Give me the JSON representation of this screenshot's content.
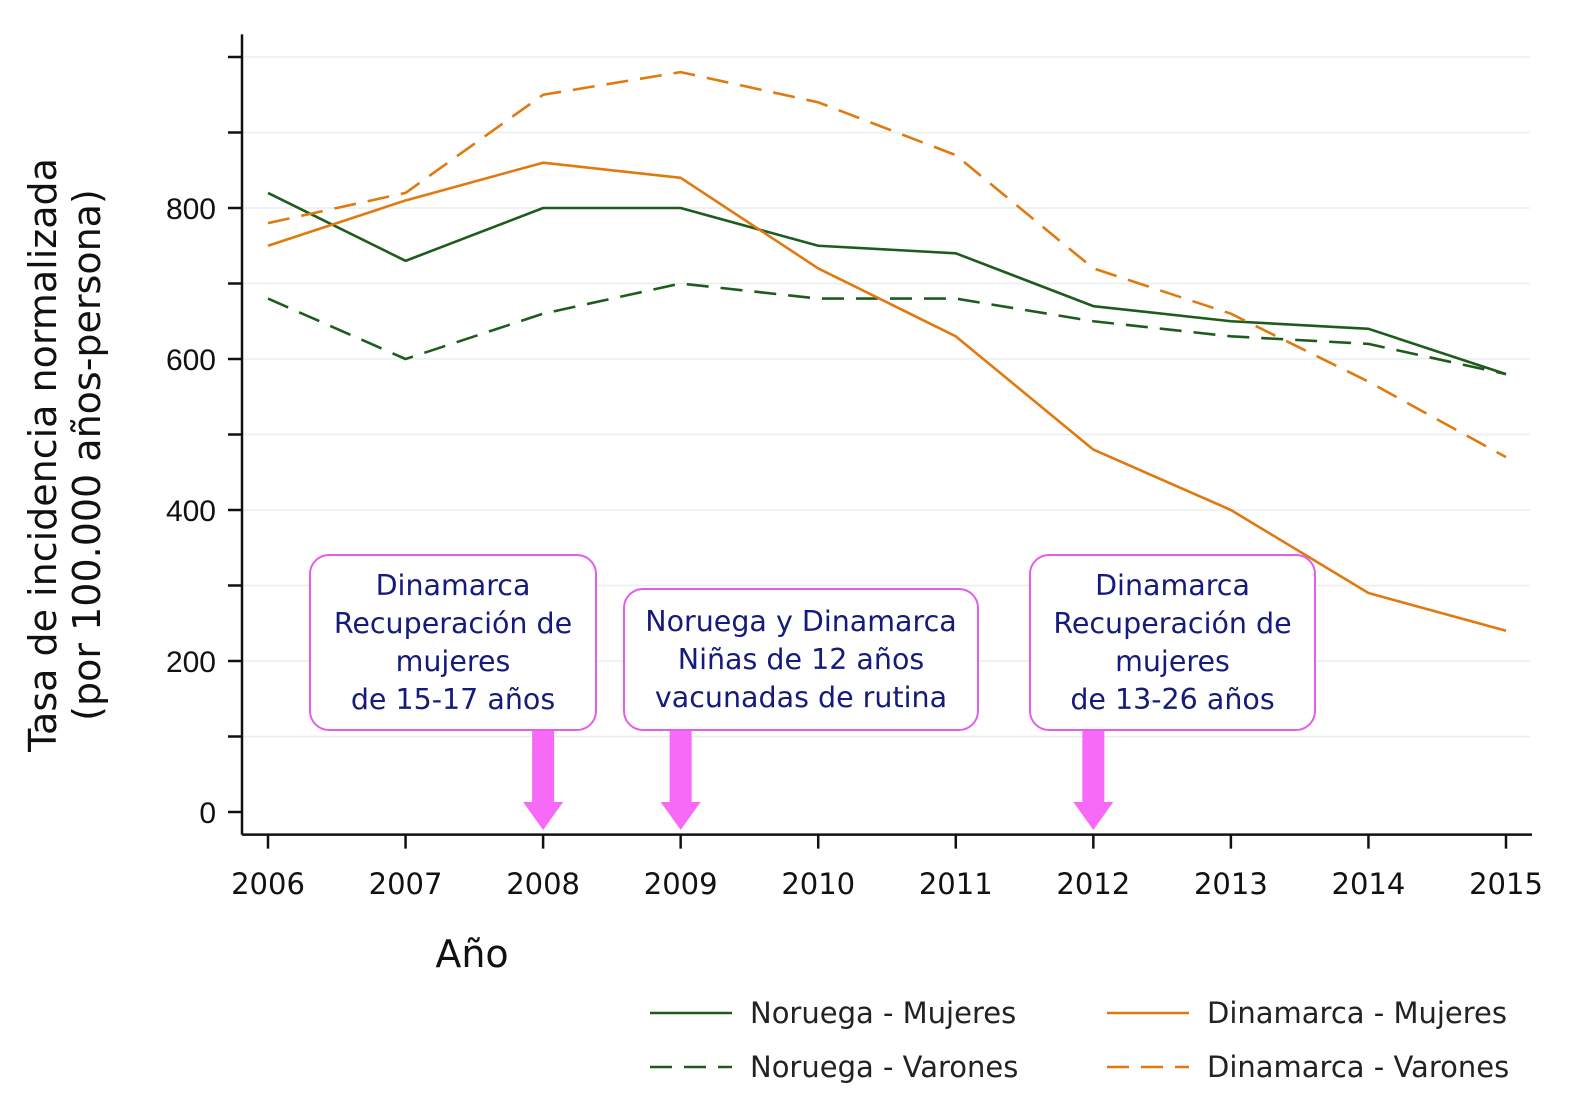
{
  "chart_data": {
    "type": "line",
    "xlabel": "Año",
    "ylabel_lines": [
      "Tasa de incidencia normalizada",
      "(por 100.000 años-persona)"
    ],
    "x": [
      2006,
      2007,
      2008,
      2009,
      2010,
      2011,
      2012,
      2013,
      2014,
      2015
    ],
    "x_tick_labels": [
      "2006",
      "2007",
      "2008",
      "2009",
      "2010",
      "2011",
      "2012",
      "2013",
      "2014",
      "2015"
    ],
    "y_tick_values": [
      0,
      200,
      400,
      600,
      800
    ],
    "y_tick_labels": [
      "0",
      "200",
      "400",
      "600",
      "800"
    ],
    "y_minor_ticks": [
      100,
      300,
      500,
      700,
      900,
      1000
    ],
    "ylim": [
      -30,
      1030
    ],
    "grid": "horizontal-light",
    "legend_position": "bottom-right",
    "series": [
      {
        "name": "Noruega - Mujeres",
        "color": "#1e5c1e",
        "dash": "solid",
        "values": [
          820,
          730,
          800,
          800,
          750,
          740,
          670,
          650,
          640,
          580
        ]
      },
      {
        "name": "Noruega - Varones",
        "color": "#1e5c1e",
        "dash": "dashed",
        "values": [
          680,
          600,
          660,
          700,
          680,
          680,
          650,
          630,
          620,
          580
        ]
      },
      {
        "name": "Dinamarca - Mujeres",
        "color": "#e07a10",
        "dash": "solid",
        "values": [
          750,
          810,
          860,
          840,
          720,
          630,
          480,
          400,
          290,
          240
        ]
      },
      {
        "name": "Dinamarca - Varones",
        "color": "#e07a10",
        "dash": "dashed",
        "values": [
          780,
          820,
          950,
          980,
          940,
          870,
          720,
          660,
          570,
          470
        ]
      }
    ],
    "annotations": [
      {
        "arrow_x": 2008,
        "lines": [
          "Dinamarca",
          "Recuperación de",
          "mujeres",
          "de 15-17 años"
        ]
      },
      {
        "arrow_x": 2009,
        "lines": [
          "Noruega y Dinamarca",
          "Niñas de 12 años",
          "vacunadas de rutina"
        ]
      },
      {
        "arrow_x": 2012,
        "lines": [
          "Dinamarca",
          "Recuperación de",
          "mujeres",
          "de 13-26 años"
        ]
      }
    ],
    "annotation_color": "#f76af7"
  }
}
